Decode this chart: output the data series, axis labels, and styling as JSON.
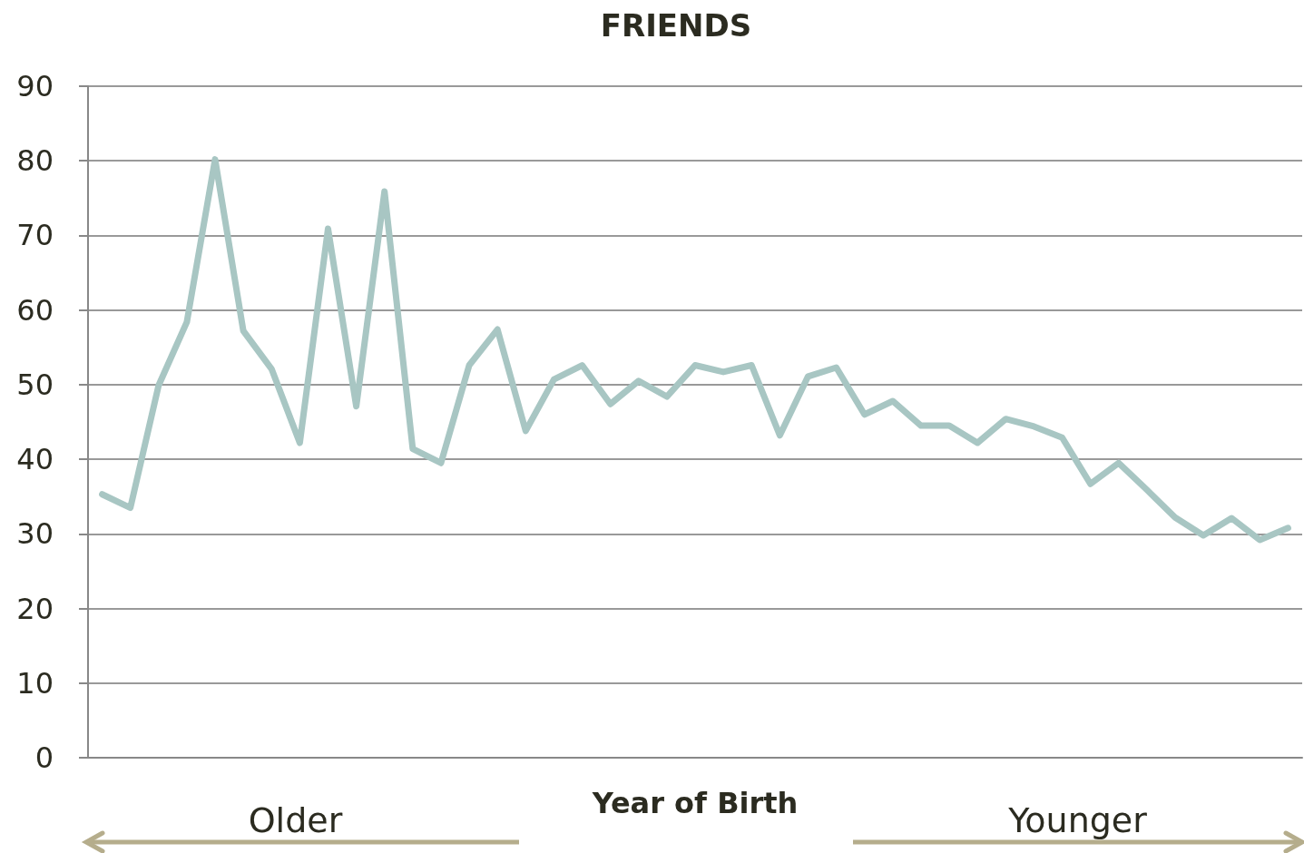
{
  "chart_data": {
    "type": "line",
    "title": "FRIENDS",
    "xlabel": "Year of Birth",
    "categories": [
      null,
      null,
      null,
      null,
      null,
      null,
      null,
      null,
      null,
      null,
      null,
      null,
      null,
      null,
      null,
      null,
      null,
      null,
      null,
      null,
      null,
      null,
      null,
      null,
      null,
      null,
      null,
      null,
      null,
      null,
      null,
      null,
      null,
      null,
      null,
      null,
      null,
      null,
      null,
      null,
      null,
      null,
      null
    ],
    "series": [
      {
        "color": "#a8c6c3",
        "values": [
          35.3,
          33.5,
          49.9,
          58.4,
          80.2,
          57.2,
          52.1,
          42.2,
          70.9,
          47.1,
          75.9,
          41.4,
          39.5,
          52.6,
          57.4,
          43.8,
          50.7,
          52.6,
          47.4,
          50.5,
          48.4,
          52.6,
          51.7,
          52.6,
          43.2,
          51.1,
          52.3,
          46.0,
          47.8,
          44.5,
          44.5,
          42.2,
          45.4,
          44.4,
          42.9,
          36.7,
          39.5,
          35.9,
          32.2,
          29.8,
          32.1,
          29.2,
          30.8
        ]
      }
    ],
    "ylim": [
      0,
      90
    ],
    "yticks": [
      0,
      10,
      20,
      30,
      40,
      50,
      60,
      70,
      80,
      90
    ],
    "grid": "y",
    "tick_labels": "y",
    "marker": "none",
    "line_style": "solid",
    "annotations": [
      "Older",
      "Younger"
    ]
  }
}
